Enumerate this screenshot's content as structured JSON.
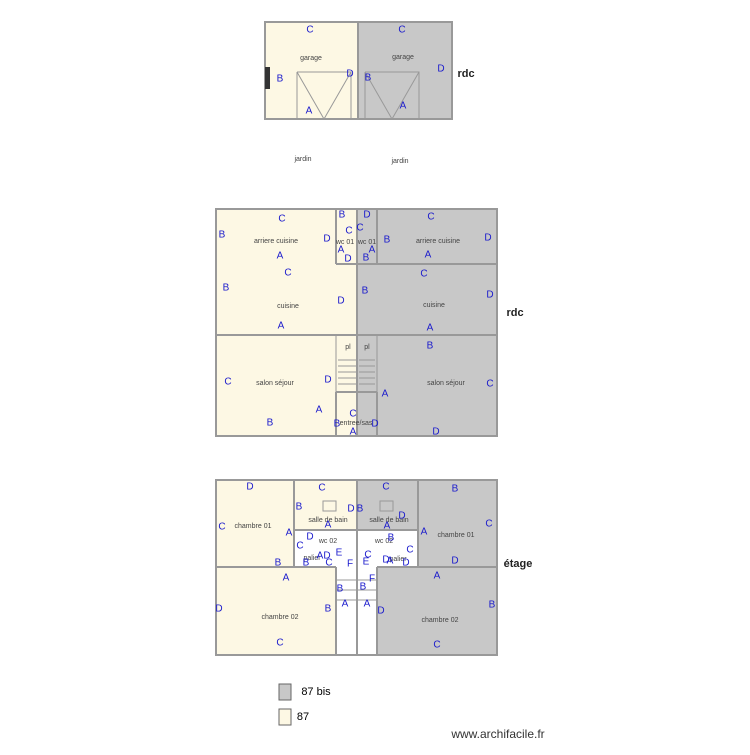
{
  "garage_plan": {
    "level": "rdc",
    "rooms": [
      "garage",
      "garage"
    ],
    "outside": [
      "jardin",
      "jardin"
    ],
    "walls": [
      "C",
      "B",
      "D",
      "A",
      "C",
      "B",
      "D",
      "A"
    ]
  },
  "ground_floor": {
    "level": "rdc",
    "rooms": [
      "arriere cuisine",
      "wc 01",
      "wc 01",
      "arriere cuisine",
      "cuisine",
      "cuisine",
      "salon séjour",
      "salon séjour",
      "pl",
      "pl",
      "entree/sas"
    ],
    "walls": [
      "C",
      "B",
      "D",
      "A",
      "B",
      "C",
      "A",
      "D",
      "D",
      "C",
      "A",
      "B",
      "C",
      "B",
      "D",
      "A",
      "C",
      "B",
      "D",
      "A",
      "C",
      "B",
      "D",
      "A",
      "C",
      "D",
      "A",
      "B",
      "B",
      "C",
      "A",
      "D",
      "C",
      "B",
      "D",
      "A"
    ]
  },
  "upper_floor": {
    "level": "étage",
    "rooms": [
      "chambre 01",
      "salle de bain",
      "wc 02",
      "palier",
      "salle de bain",
      "wc 02",
      "palier",
      "chambre 01",
      "chambre 02",
      "chambre 02"
    ],
    "walls": [
      "D",
      "C",
      "A",
      "B",
      "C",
      "B",
      "D",
      "A",
      "D",
      "C",
      "A",
      "D",
      "B",
      "C",
      "E",
      "F",
      "B",
      "A",
      "C",
      "B",
      "D",
      "A",
      "B",
      "C",
      "E",
      "C",
      "D",
      "A",
      "D",
      "F",
      "B",
      "A",
      "B",
      "C",
      "A",
      "D",
      "A",
      "D",
      "B",
      "C",
      "A",
      "D",
      "B",
      "C"
    ]
  },
  "legend": [
    "87 bis",
    "87"
  ],
  "footer": "www.archifacile.fr"
}
